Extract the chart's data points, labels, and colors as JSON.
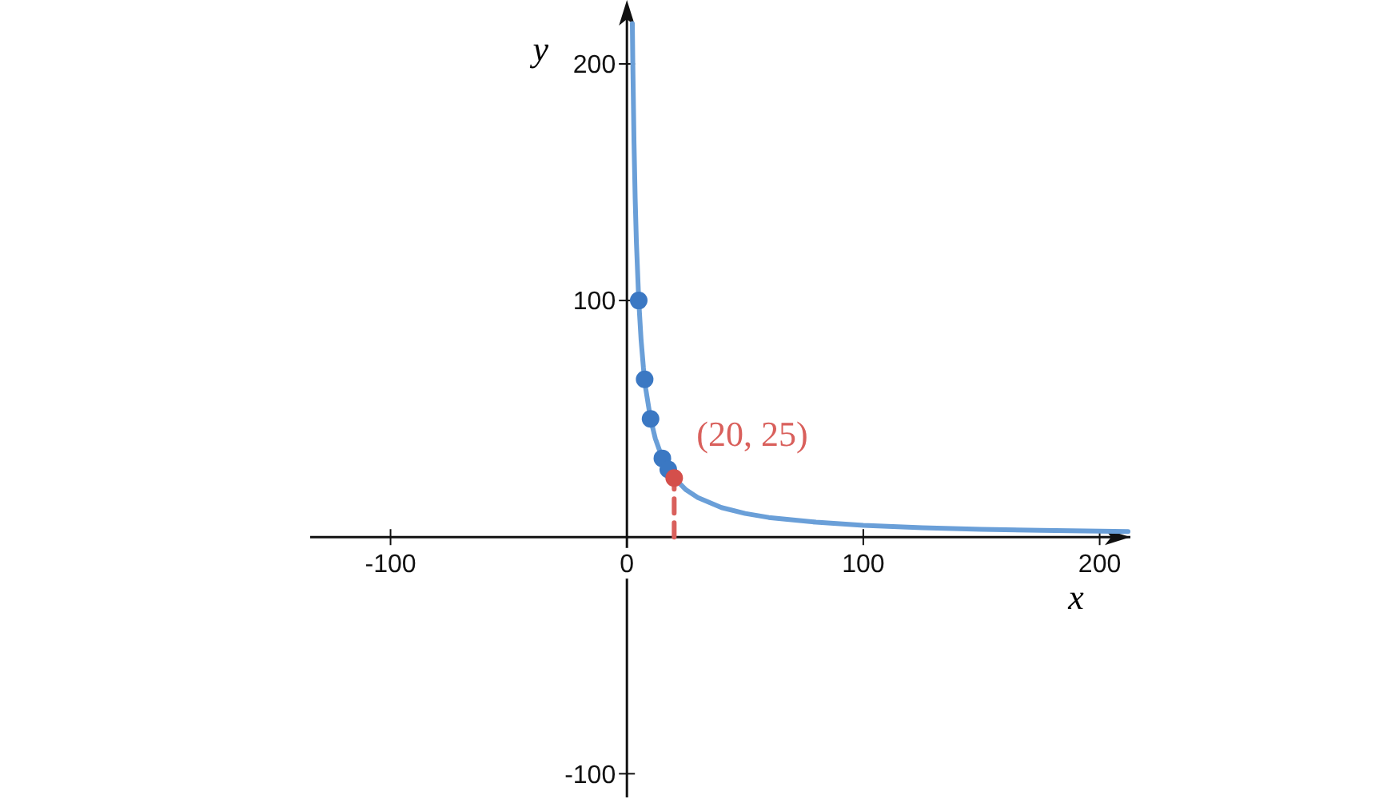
{
  "chart_data": {
    "type": "line",
    "xlabel": "x",
    "ylabel": "y",
    "xlim": [
      -134,
      213
    ],
    "ylim": [
      -110,
      227
    ],
    "xticks": [
      -100,
      {
        "value": 0,
        "label": "0"
      },
      100,
      200
    ],
    "yticks": [
      -100,
      {
        "value": 0,
        "label": null
      },
      100,
      200
    ],
    "grid": false,
    "series": [
      {
        "color": "#6a9fd8",
        "marker": "none",
        "line_style": "solid",
        "x": [
          2.3,
          2.5,
          3,
          3.5,
          4,
          5,
          6,
          7,
          8,
          10,
          12,
          15,
          20,
          25,
          30,
          40,
          50,
          60,
          80,
          100,
          125,
          150,
          175,
          200,
          212
        ],
        "values": [
          217,
          200,
          166.7,
          142.9,
          125,
          100,
          83.3,
          71.4,
          62.5,
          50,
          41.7,
          33.3,
          25,
          20,
          16.7,
          12.5,
          10,
          8.3,
          6.3,
          5,
          4,
          3.3,
          2.9,
          2.5,
          2.4
        ]
      },
      {
        "type": "scatter",
        "color": "#3b78c3",
        "marker": "circle",
        "x": [
          5,
          7.5,
          10,
          15,
          17.5
        ],
        "values": [
          100,
          66.7,
          50,
          33.3,
          28.6
        ]
      },
      {
        "color": "#d9605c",
        "marker": "none",
        "line_style": "dashed",
        "x": [
          20,
          20
        ],
        "values": [
          0,
          25
        ]
      },
      {
        "type": "scatter",
        "color": "#d44f4b",
        "marker": "circle",
        "x": [
          20
        ],
        "values": [
          25
        ]
      }
    ],
    "annotations": [
      {
        "text": "(20, 25)",
        "x": 20,
        "y": 25
      }
    ]
  }
}
